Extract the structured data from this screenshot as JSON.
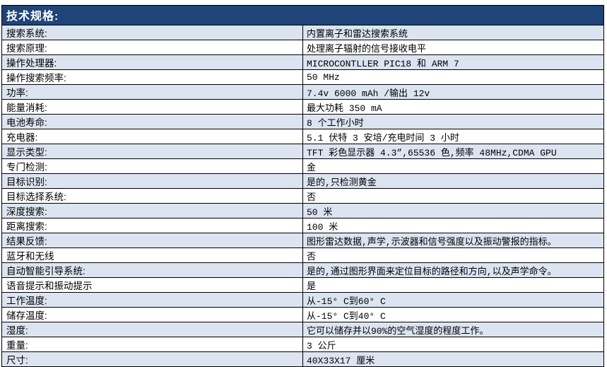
{
  "colors": {
    "header_bg": "#1F4477",
    "header_text": "#FFFFFF",
    "stripe_bg": "#DCE4F1",
    "row_bg": "#FFFFFF",
    "border": "#000000"
  },
  "header": {
    "title": "技术规格:"
  },
  "table": {
    "rows": [
      {
        "label": "搜索系统:",
        "value": "内置离子和雷达搜索系统"
      },
      {
        "label": "搜索原理:",
        "value": "处理离子辐射的信号接收电平"
      },
      {
        "label": "操作处理器:",
        "value": "MICROCONTLLER PIC18 和 ARM 7"
      },
      {
        "label": "操作搜索频率:",
        "value": "50 MHz"
      },
      {
        "label": "功率:",
        "value": "7.4v 6000 mAh /输出 12v"
      },
      {
        "label": "能量消耗:",
        "value": "最大功耗 350 mA"
      },
      {
        "label": "电池寿命:",
        "value": "8 个工作小时"
      },
      {
        "label": "充电器:",
        "value": "5.1 伏特 3 安培/充电时间 3 小时"
      },
      {
        "label": "显示类型:",
        "value": "TFT 彩色显示器 4.3”,65536 色,频率 48MHz,CDMA GPU"
      },
      {
        "label": "专门检测:",
        "value": "金"
      },
      {
        "label": "目标识别:",
        "value": "是的,只检测黄金"
      },
      {
        "label": "目标选择系统:",
        "value": "否"
      },
      {
        "label": "深度搜索:",
        "value": "50 米"
      },
      {
        "label": "距离搜索:",
        "value": "100 米"
      },
      {
        "label": "结果反馈:",
        "value": "图形雷达数据,声学,示波器和信号强度以及振动警报的指标。"
      },
      {
        "label": "蓝牙和无线",
        "value": "否"
      },
      {
        "label": "自动智能引导系统:",
        "value": "是的,通过图形界面来定位目标的路径和方向,以及声学命令。"
      },
      {
        "label": "语音提示和振动提示",
        "value": "是"
      },
      {
        "label": "工作温度:",
        "value": "从-15° C到60° C"
      },
      {
        "label": "储存温度:",
        "value": "从-15° C到40° C"
      },
      {
        "label": "湿度:",
        "value": "它可以储存并以90%的空气湿度的程度工作。"
      },
      {
        "label": "重量:",
        "value": "3 公斤"
      },
      {
        "label": "尺寸:",
        "value": "40X33X17 厘米"
      }
    ]
  }
}
